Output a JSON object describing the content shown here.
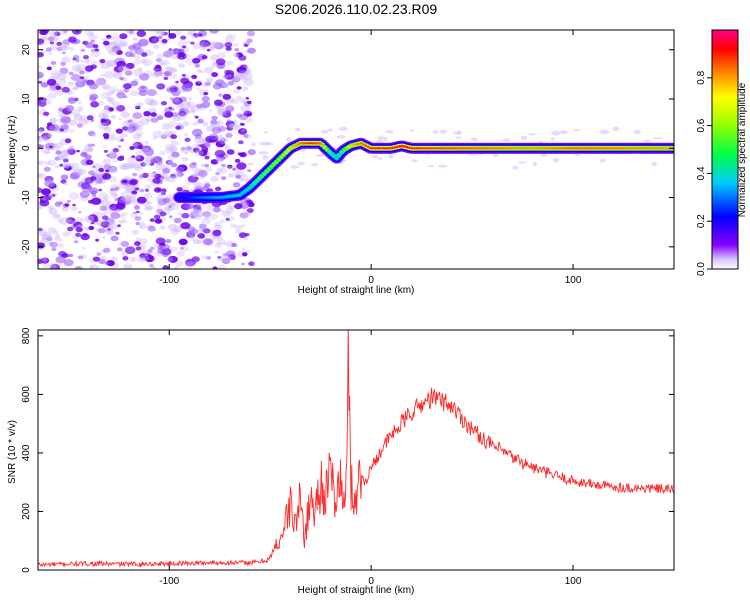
{
  "figure_title": "S206.2026.110.02.23.R09",
  "chart_data": [
    {
      "type": "heatmap",
      "title": "S206.2026.110.02.23.R09",
      "xlabel": "Height of straight line (km)",
      "ylabel": "Frequency (Hz)",
      "xlim": [
        -165,
        150
      ],
      "ylim": [
        -24.5,
        24
      ],
      "xticks": [
        -100,
        0,
        100
      ],
      "yticks": [
        -20,
        -10,
        0,
        10,
        20
      ],
      "colorbar": {
        "label": "Normalized spectral amplitude",
        "range": [
          0,
          1
        ],
        "ticks": [
          0.0,
          0.2,
          0.4,
          0.6,
          0.8
        ],
        "colormap": [
          "#ffffff",
          "#8800ff",
          "#0000ff",
          "#00e0ff",
          "#00ff00",
          "#ffff00",
          "#ff8800",
          "#ff0000",
          "#ff0088"
        ]
      },
      "ridge": {
        "x": [
          -95,
          -85,
          -75,
          -65,
          -60,
          -55,
          -50,
          -45,
          -40,
          -35,
          -30,
          -25,
          -20,
          -17,
          -14,
          -10,
          -5,
          0,
          10,
          15,
          20,
          50,
          80,
          100,
          150
        ],
        "y": [
          -10,
          -10,
          -10,
          -9.5,
          -8,
          -6,
          -4,
          -2,
          0,
          1,
          1,
          1,
          -1,
          -2,
          -0.5,
          0.5,
          1,
          0,
          0,
          0.5,
          0,
          0,
          0,
          0,
          0
        ],
        "amplitude": [
          0.2,
          0.3,
          0.35,
          0.4,
          0.45,
          0.55,
          0.6,
          0.65,
          0.75,
          0.85,
          0.9,
          0.85,
          0.5,
          0.45,
          0.55,
          0.75,
          0.85,
          0.9,
          0.9,
          0.95,
          0.9,
          0.85,
          0.8,
          0.85,
          0.8
        ]
      },
      "noise_region_x": [
        -165,
        -63
      ]
    },
    {
      "type": "line",
      "xlabel": "Height of straight line (km)",
      "ylabel": "SNR (10 * v/v)",
      "xlim": [
        -165,
        150
      ],
      "ylim": [
        0,
        820
      ],
      "xticks": [
        -100,
        0,
        100
      ],
      "yticks": [
        0,
        200,
        400,
        600,
        800
      ],
      "series": [
        {
          "name": "SNR",
          "color": "#ff2a2a",
          "x": [
            -165,
            -140,
            -120,
            -100,
            -80,
            -60,
            -55,
            -50,
            -48,
            -45,
            -42,
            -40,
            -38,
            -35,
            -33,
            -30,
            -28,
            -25,
            -22,
            -20,
            -18,
            -15,
            -13,
            -12,
            -11,
            -10,
            -8,
            -5,
            -3,
            0,
            5,
            10,
            15,
            20,
            25,
            30,
            35,
            40,
            45,
            50,
            60,
            70,
            80,
            90,
            100,
            110,
            120,
            130,
            140,
            150
          ],
          "y": [
            18,
            22,
            20,
            22,
            25,
            25,
            28,
            40,
            70,
            110,
            170,
            230,
            150,
            240,
            110,
            250,
            200,
            300,
            260,
            330,
            250,
            300,
            200,
            360,
            800,
            280,
            250,
            320,
            300,
            350,
            410,
            460,
            500,
            540,
            565,
            590,
            580,
            560,
            520,
            480,
            425,
            385,
            350,
            325,
            305,
            292,
            285,
            280,
            278,
            275
          ]
        }
      ]
    }
  ]
}
